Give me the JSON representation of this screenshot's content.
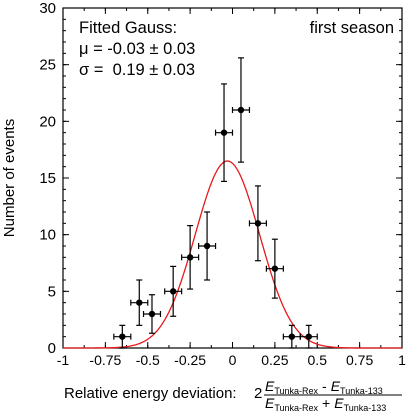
{
  "chart_data": {
    "type": "scatter",
    "title": "",
    "xlabel": "Relative energy deviation:",
    "xlabel_formula": {
      "factor": "2",
      "num_a_main": "E",
      "num_a_sub": "Tunka-Rex",
      "num_op": "-",
      "num_b_main": "E",
      "num_b_sub": "Tunka-133",
      "den_a_main": "E",
      "den_a_sub": "Tunka-Rex",
      "den_op": "+",
      "den_b_main": "E",
      "den_b_sub": "Tunka-133"
    },
    "ylabel": "Number of events",
    "xlim": [
      -1,
      1
    ],
    "ylim": [
      0,
      30
    ],
    "xticks": [
      -1,
      -0.75,
      -0.5,
      -0.25,
      0,
      0.25,
      0.5,
      0.75,
      1
    ],
    "xtick_labels": [
      "-1",
      "-0.75",
      "-0.5",
      "-0.25",
      "0",
      "0.25",
      "0.5",
      "0.75",
      "1"
    ],
    "yticks": [
      0,
      5,
      10,
      15,
      20,
      25,
      30
    ],
    "ytick_labels": [
      "0",
      "5",
      "10",
      "15",
      "20",
      "25",
      "30"
    ],
    "grid": false,
    "annotations": {
      "fit_title": "Fitted Gauss:",
      "mu_line": "μ = -0.03 ± 0.03",
      "sigma_line": "σ =  0.19 ± 0.03",
      "season": "first season"
    },
    "series": [
      {
        "kind": "histogram-points",
        "color": "#000000",
        "x": [
          -0.65,
          -0.55,
          -0.475,
          -0.35,
          -0.25,
          -0.15,
          -0.05,
          0.05,
          0.15,
          0.25,
          0.35,
          0.45
        ],
        "y": [
          1,
          4,
          3,
          5,
          8,
          9,
          19,
          21,
          11,
          7,
          1,
          1
        ],
        "x_err": [
          0.05,
          0.05,
          0.05,
          0.05,
          0.05,
          0.05,
          0.05,
          0.05,
          0.05,
          0.05,
          0.05,
          0.05
        ],
        "y_err_low": [
          1,
          2,
          1.7,
          2.2,
          2.8,
          3,
          4.3,
          4.6,
          3.3,
          2.6,
          1,
          1
        ],
        "y_err_high": [
          1,
          2,
          1.7,
          2.2,
          2.8,
          3,
          4.3,
          4.6,
          3.3,
          2.6,
          1,
          1
        ]
      },
      {
        "kind": "fit-curve",
        "color": "#e8191c",
        "amplitude": 16.5,
        "mean": -0.03,
        "sigma": 0.19
      }
    ]
  }
}
